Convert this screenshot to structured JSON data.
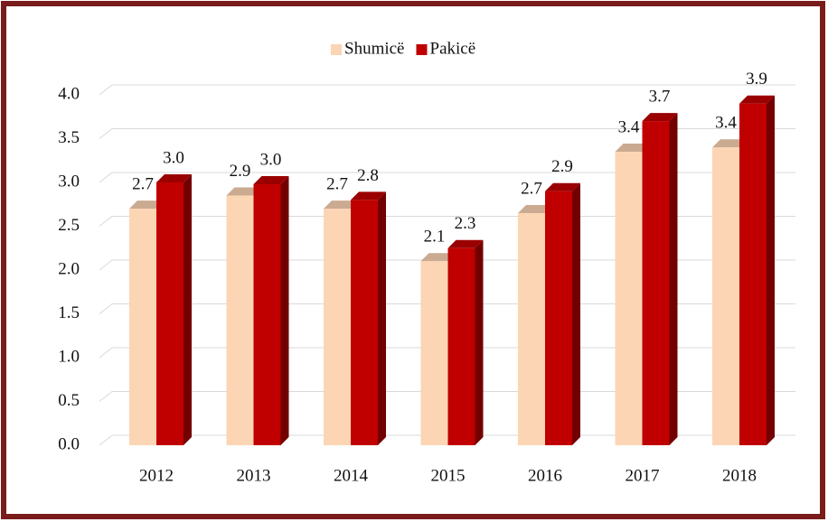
{
  "chart_data": {
    "type": "bar3d",
    "categories": [
      "2012",
      "2013",
      "2014",
      "2015",
      "2016",
      "2017",
      "2018"
    ],
    "series": [
      {
        "name": "Shumicë",
        "color": "#fcd5b5",
        "values": [
          2.7,
          2.85,
          2.7,
          2.1,
          2.65,
          3.35,
          3.4
        ],
        "value_labels": [
          "2.7",
          "2.9",
          "2.7",
          "2.1",
          "2.7",
          "3.4",
          "3.4"
        ]
      },
      {
        "name": "Pakicë",
        "color": "#c00000",
        "values": [
          3.0,
          2.98,
          2.8,
          2.25,
          2.9,
          3.7,
          3.9
        ],
        "value_labels": [
          "3.0",
          "3.0",
          "2.8",
          "2.3",
          "2.9",
          "3.7",
          "3.9"
        ]
      }
    ],
    "ylim": [
      0,
      4
    ],
    "yticks": [
      {
        "value": 0,
        "label": "0.0"
      },
      0.5,
      {
        "value": 1,
        "label": "1.0"
      },
      1.5,
      {
        "value": 2,
        "label": "2.0"
      },
      2.5,
      {
        "value": 3,
        "label": "3.0"
      },
      3.5,
      {
        "value": 4,
        "label": "4.0"
      }
    ],
    "grid": true,
    "legend": "top"
  }
}
